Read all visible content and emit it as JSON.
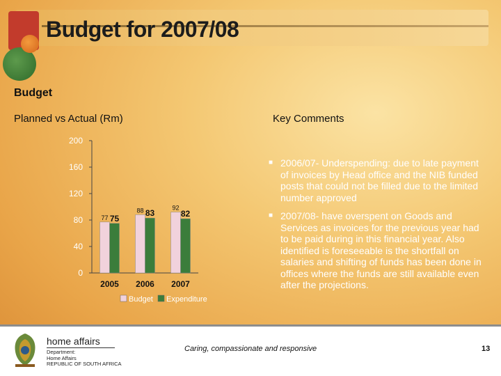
{
  "header": {
    "title": "Budget for 2007/08"
  },
  "section": {
    "heading": "Budget",
    "chart_label": "Planned vs Actual (Rm)",
    "comments_label": "Key Comments"
  },
  "comments": [
    "2006/07- Underspending: due to late payment of invoices by Head office and the NIB funded posts that could not be filled due to the limited number approved",
    "2007/08- have overspent on Goods and Services as invoices for the previous year had to be paid during in this financial year. Also identified is foreseeable is the shortfall on salaries and shifting of funds has been done in offices where the funds are still available even after the projections."
  ],
  "chart_data": {
    "type": "bar",
    "title": "",
    "xlabel": "",
    "ylabel": "",
    "categories": [
      "2005",
      "2006",
      "2007"
    ],
    "series": [
      {
        "name": "Budget",
        "values": [
          77,
          88,
          92
        ],
        "color": "#f1d2dc"
      },
      {
        "name": "Expenditure",
        "values": [
          75,
          83,
          82
        ],
        "color": "#3b7d3b"
      }
    ],
    "ylim": [
      0,
      200
    ],
    "yticks": [
      0,
      40,
      80,
      120,
      160,
      200
    ],
    "grid": false,
    "legend": "bottom"
  },
  "footer": {
    "brand": "home affairs",
    "brand_lines": [
      "Department:",
      "Home Affairs",
      "REPUBLIC OF SOUTH AFRICA"
    ],
    "tagline": "Caring, compassionate and responsive",
    "page_number": "13"
  }
}
